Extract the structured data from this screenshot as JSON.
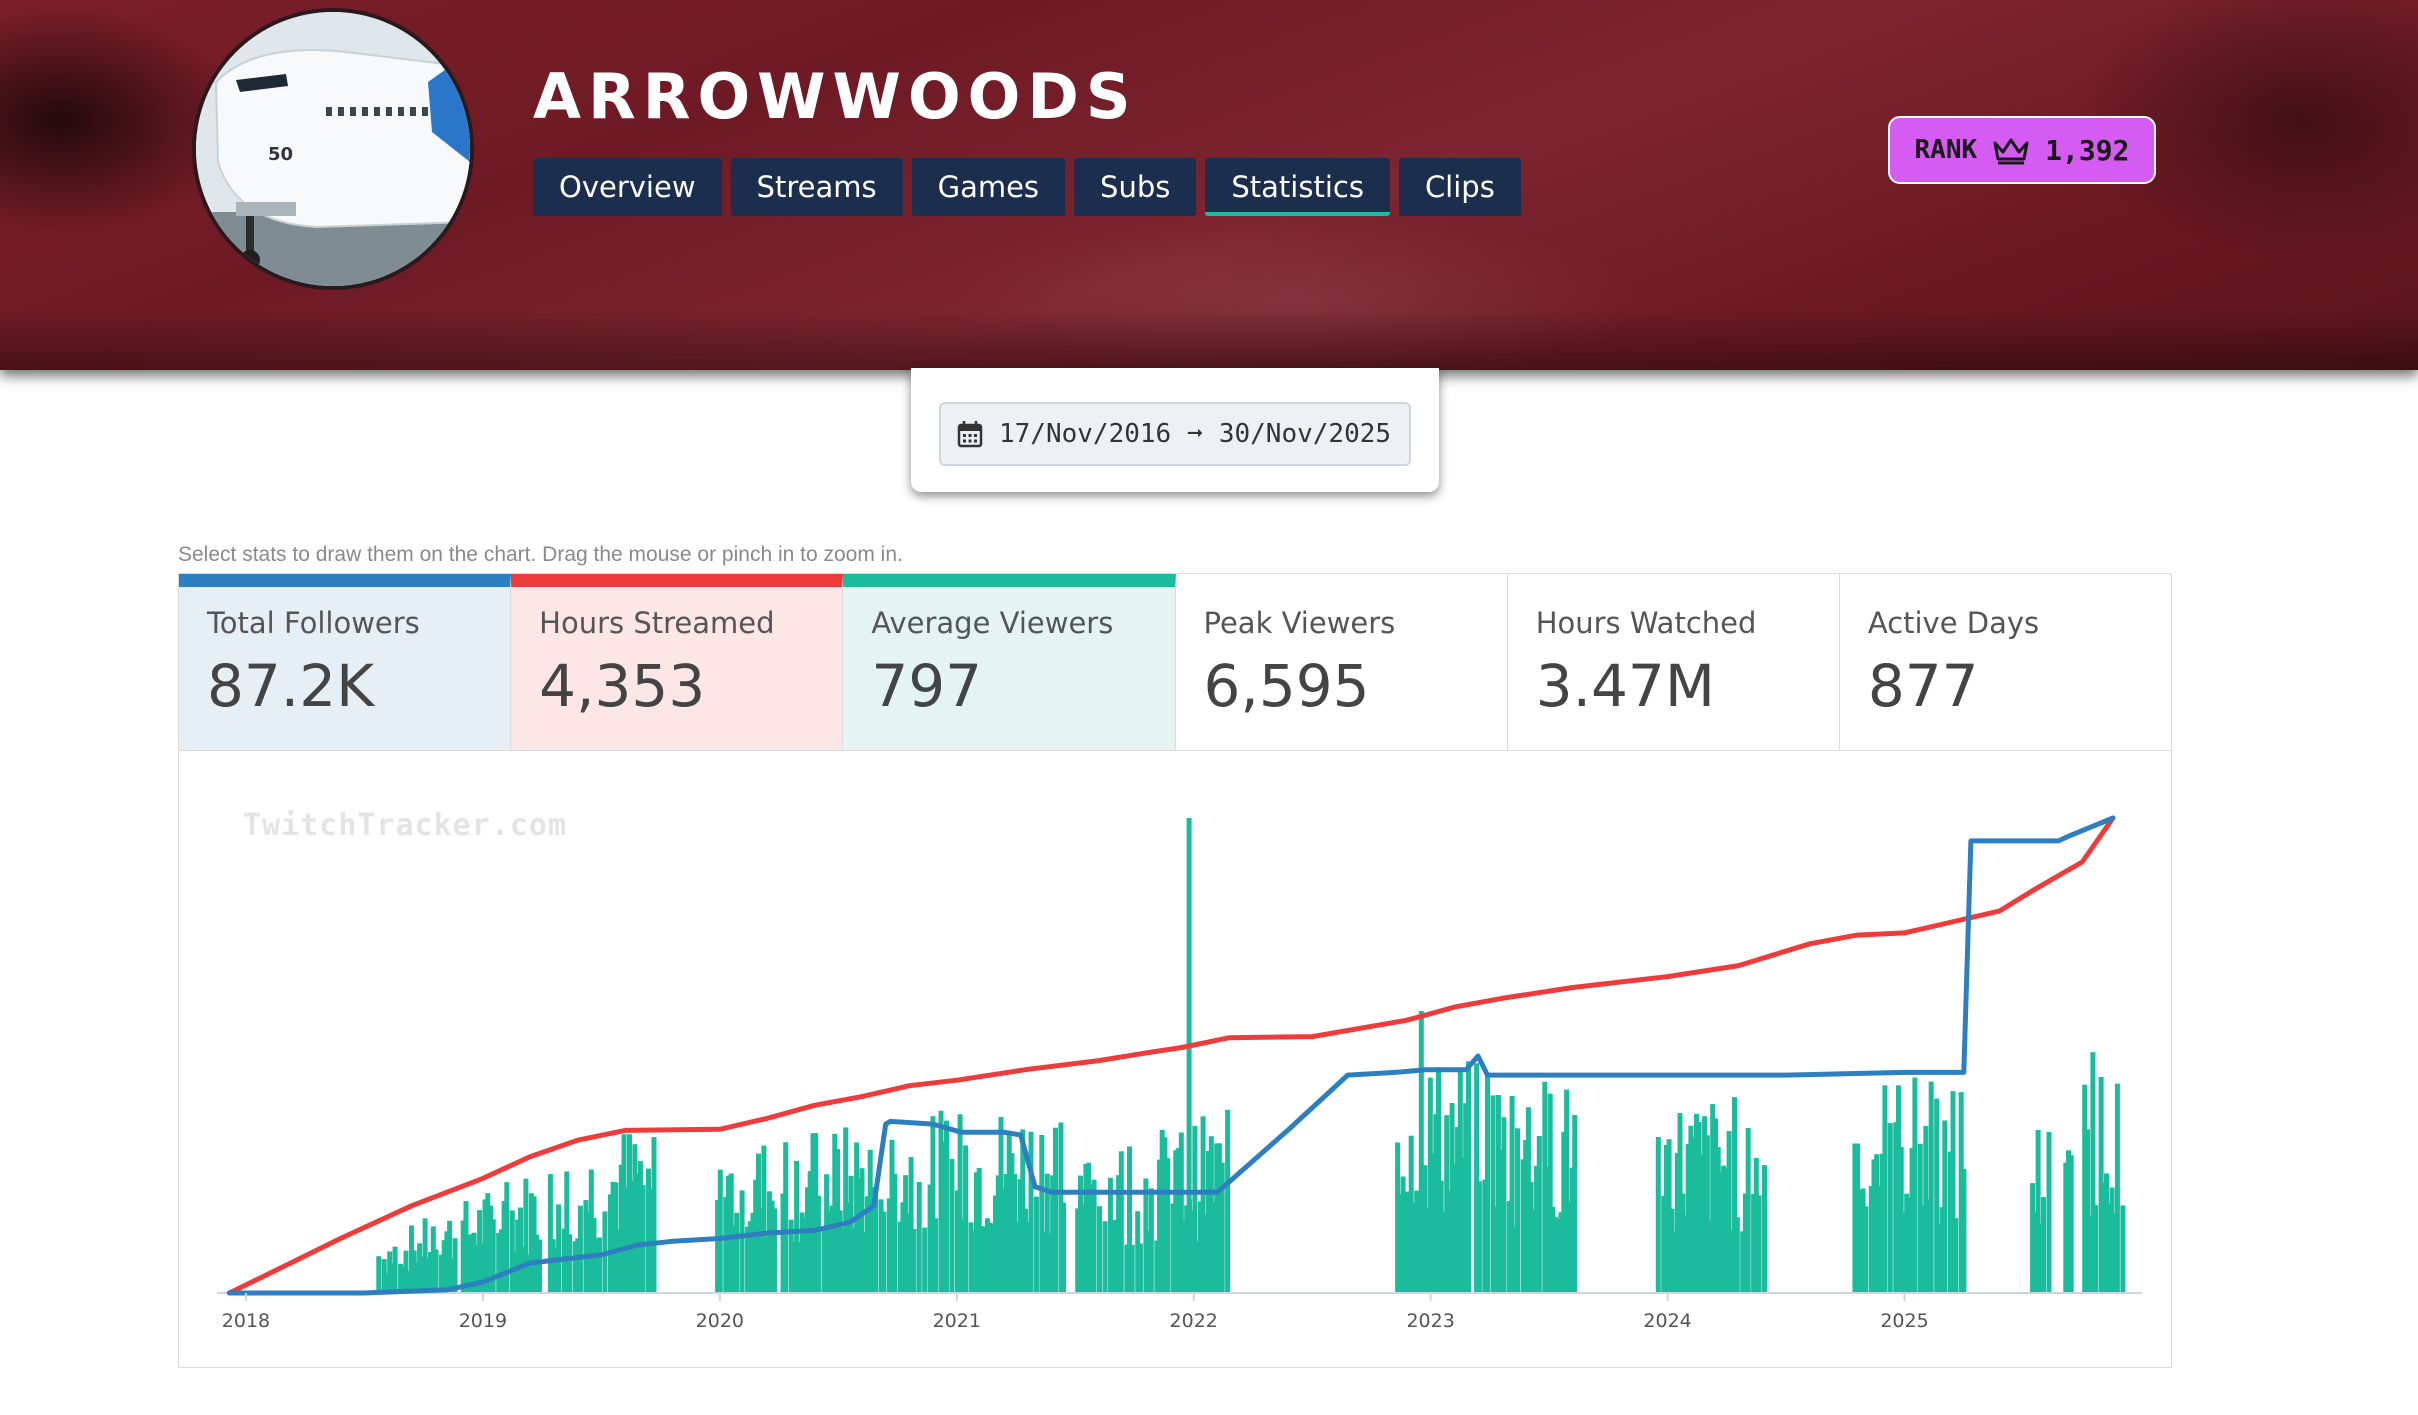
{
  "channel": {
    "name": "ARROWWOODS",
    "avatar_icon": "airplane-avatar"
  },
  "tabs": [
    {
      "label": "Overview",
      "active": false
    },
    {
      "label": "Streams",
      "active": false
    },
    {
      "label": "Games",
      "active": false
    },
    {
      "label": "Subs",
      "active": false
    },
    {
      "label": "Statistics",
      "active": true
    },
    {
      "label": "Clips",
      "active": false
    }
  ],
  "rank": {
    "label": "RANK",
    "value": "1,392",
    "icon": "crown-icon"
  },
  "date_range": {
    "start": "17/Nov/2016",
    "arrow": "➞",
    "end": "30/Nov/2025",
    "icon": "calendar-icon"
  },
  "hint": "Select stats to draw them on the chart. Drag the mouse or pinch in to zoom in.",
  "stats": [
    {
      "label": "Total Followers",
      "value": "87.2K",
      "selected": true,
      "color": "#2e7fbf"
    },
    {
      "label": "Hours Streamed",
      "value": "4,353",
      "selected": true,
      "color": "#ee3b3b"
    },
    {
      "label": "Average Viewers",
      "value": "797",
      "selected": true,
      "color": "#1abc9c"
    },
    {
      "label": "Peak Viewers",
      "value": "6,595",
      "selected": false
    },
    {
      "label": "Hours Watched",
      "value": "3.47M",
      "selected": false
    },
    {
      "label": "Active Days",
      "value": "877",
      "selected": false
    }
  ],
  "watermark": "TwitchTracker.com",
  "chart_data": {
    "type": "line",
    "x_tick_labels": [
      "2018",
      "2019",
      "2020",
      "2021",
      "2022",
      "2023",
      "2024",
      "2025"
    ],
    "x_range": [
      2017.92,
      2025.96
    ],
    "grid": false,
    "legend": "none",
    "series": [
      {
        "name": "Total Followers",
        "type": "line",
        "color": "#2e7fbf",
        "scale_max": 87200,
        "x": [
          2017.93,
          2018.5,
          2018.85,
          2019.0,
          2019.2,
          2019.5,
          2019.65,
          2019.8,
          2020.0,
          2020.2,
          2020.4,
          2020.55,
          2020.65,
          2020.7,
          2020.72,
          2020.9,
          2021.02,
          2021.2,
          2021.27,
          2021.33,
          2021.4,
          2021.6,
          2021.8,
          2022.1,
          2022.4,
          2022.65,
          2022.85,
          2022.98,
          2023.15,
          2023.2,
          2023.24,
          2023.6,
          2024.0,
          2024.5,
          2025.0,
          2025.25,
          2025.28,
          2025.35,
          2025.65,
          2025.7,
          2025.88
        ],
        "y": [
          0,
          0,
          600,
          2000,
          5500,
          7000,
          8800,
          9500,
          10000,
          11000,
          11500,
          13000,
          16000,
          31000,
          31500,
          31000,
          29500,
          29500,
          29000,
          19500,
          18500,
          18500,
          18500,
          18500,
          30000,
          40000,
          40500,
          41000,
          41000,
          43500,
          40000,
          40000,
          40000,
          40000,
          40500,
          40500,
          83000,
          83000,
          83000,
          84000,
          87200
        ]
      },
      {
        "name": "Hours Streamed",
        "type": "line",
        "color": "#ee3b3b",
        "scale_max": 4353,
        "x": [
          2017.93,
          2018.1,
          2018.4,
          2018.7,
          2019.0,
          2019.2,
          2019.4,
          2019.6,
          2020.0,
          2020.2,
          2020.4,
          2020.6,
          2020.8,
          2021.0,
          2021.3,
          2021.6,
          2021.8,
          2021.95,
          2022.15,
          2022.5,
          2022.9,
          2023.1,
          2023.3,
          2023.6,
          2024.0,
          2024.3,
          2024.6,
          2024.8,
          2025.0,
          2025.2,
          2025.4,
          2025.55,
          2025.75,
          2025.88
        ],
        "y": [
          0,
          180,
          500,
          800,
          1050,
          1250,
          1400,
          1490,
          1500,
          1600,
          1720,
          1800,
          1900,
          1950,
          2050,
          2130,
          2200,
          2250,
          2340,
          2350,
          2500,
          2620,
          2700,
          2800,
          2900,
          3000,
          3200,
          3280,
          3300,
          3400,
          3500,
          3700,
          3950,
          4353
        ]
      },
      {
        "name": "Average Viewers",
        "type": "bar",
        "color": "#1abc9c",
        "scale_max": 1600,
        "spikes": [
          {
            "x": 2021.97,
            "y": 1600
          },
          {
            "x": 2022.95,
            "y": 950
          }
        ],
        "active_periods": [
          {
            "from": 2018.55,
            "to": 2019.72,
            "level_from": 150,
            "level_to": 520
          },
          {
            "from": 2019.98,
            "to": 2021.45,
            "level_from": 430,
            "level_to": 560
          },
          {
            "from": 2021.5,
            "to": 2022.15,
            "level_from": 420,
            "level_to": 520
          },
          {
            "from": 2022.85,
            "to": 2023.6,
            "level_from": 700,
            "level_to": 600
          },
          {
            "from": 2023.95,
            "to": 2024.4,
            "level_from": 560,
            "level_to": 560
          },
          {
            "from": 2024.78,
            "to": 2025.25,
            "level_from": 620,
            "level_to": 620
          },
          {
            "from": 2025.53,
            "to": 2025.6,
            "level_from": 500,
            "level_to": 500
          },
          {
            "from": 2025.67,
            "to": 2025.7,
            "level_from": 420,
            "level_to": 420
          },
          {
            "from": 2025.75,
            "to": 2025.92,
            "level_from": 700,
            "level_to": 760
          }
        ]
      }
    ]
  }
}
